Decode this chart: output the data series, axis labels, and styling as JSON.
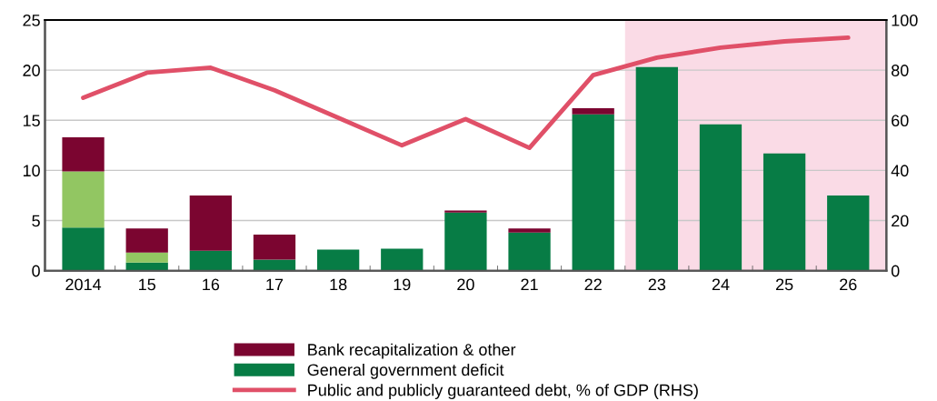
{
  "chart_data": {
    "type": "bar",
    "stacked": true,
    "categories": [
      "2014",
      "15",
      "16",
      "17",
      "18",
      "19",
      "20",
      "21",
      "22",
      "23",
      "24",
      "25",
      "26"
    ],
    "series": [
      {
        "name": "General government deficit",
        "color": "#077c45",
        "values": [
          4.3,
          0.8,
          2.0,
          1.1,
          2.1,
          2.2,
          5.8,
          3.8,
          15.6,
          20.3,
          14.6,
          11.7,
          7.5
        ]
      },
      {
        "color": "#92c662",
        "values": [
          5.6,
          1.0,
          0,
          0,
          0,
          0,
          0,
          0,
          0,
          0,
          0,
          0,
          0
        ]
      },
      {
        "name": "Bank recapitalization & other",
        "color": "#7b0530",
        "values": [
          3.4,
          2.4,
          5.5,
          2.5,
          0,
          0,
          0.2,
          0.4,
          0.6,
          0,
          0,
          0,
          0
        ]
      },
      {
        "name": "Public and publicly guaranteed debt, % of GDP (RHS)",
        "type": "line",
        "axis": "y2",
        "color": "#e05068",
        "values": [
          69,
          79,
          81,
          72,
          61,
          50,
          60.5,
          49,
          78,
          85,
          89,
          91.5,
          93
        ]
      }
    ],
    "ylim": [
      0,
      25
    ],
    "yticks": [
      0,
      5,
      10,
      15,
      20,
      25
    ],
    "y2lim": [
      0,
      100
    ],
    "y2ticks": [
      0,
      20,
      40,
      60,
      80,
      100
    ],
    "bands": [
      {
        "axis": "x",
        "from": "23",
        "to": "26",
        "color": "#fadbe6"
      }
    ],
    "grid": "y",
    "legend": "bottom"
  }
}
